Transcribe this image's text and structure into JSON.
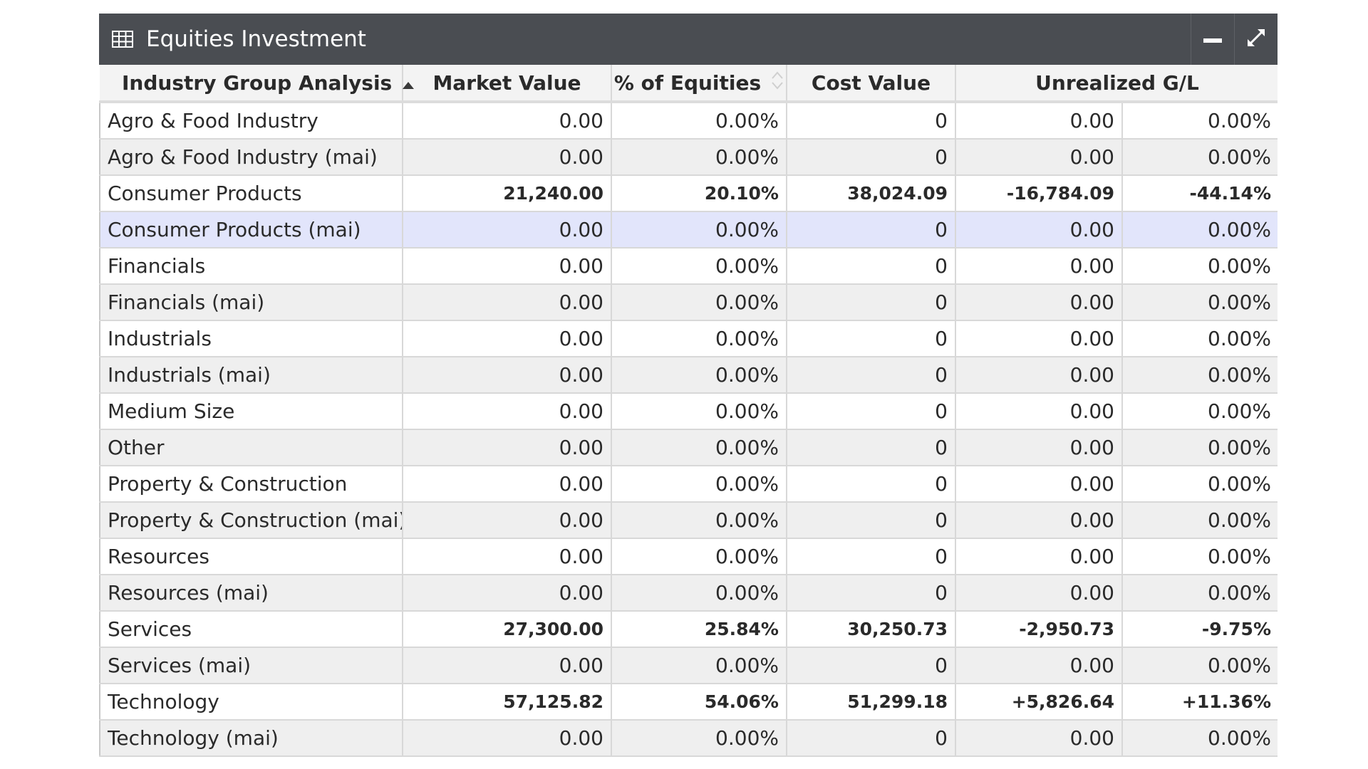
{
  "panel": {
    "title": "Equities Investment",
    "icons": {
      "title": "table-icon",
      "minimize": "minimize-icon",
      "maximize": "expand-icon"
    }
  },
  "table": {
    "columns": [
      {
        "label": "Industry Group Analysis",
        "sort": "ascending"
      },
      {
        "label": "Market Value"
      },
      {
        "label": "% of Equities",
        "sort": "sortable"
      },
      {
        "label": "Cost Value"
      },
      {
        "label": "Unrealized G/L"
      }
    ],
    "rows": [
      {
        "name": "Agro & Food Industry",
        "market_value": "0.00",
        "pct_equities": "0.00%",
        "cost_value": "0",
        "unrealized_gl": "0.00",
        "unrealized_pct": "0.00%"
      },
      {
        "name": "Agro & Food Industry (mai)",
        "market_value": "0.00",
        "pct_equities": "0.00%",
        "cost_value": "0",
        "unrealized_gl": "0.00",
        "unrealized_pct": "0.00%"
      },
      {
        "name": "Consumer Products",
        "market_value": "21,240.00",
        "pct_equities": "20.10%",
        "cost_value": "38,024.09",
        "unrealized_gl": "-16,784.09",
        "unrealized_pct": "-44.14%",
        "emphasis": true
      },
      {
        "name": "Consumer Products (mai)",
        "market_value": "0.00",
        "pct_equities": "0.00%",
        "cost_value": "0",
        "unrealized_gl": "0.00",
        "unrealized_pct": "0.00%",
        "highlighted": true
      },
      {
        "name": "Financials",
        "market_value": "0.00",
        "pct_equities": "0.00%",
        "cost_value": "0",
        "unrealized_gl": "0.00",
        "unrealized_pct": "0.00%"
      },
      {
        "name": "Financials (mai)",
        "market_value": "0.00",
        "pct_equities": "0.00%",
        "cost_value": "0",
        "unrealized_gl": "0.00",
        "unrealized_pct": "0.00%"
      },
      {
        "name": "Industrials",
        "market_value": "0.00",
        "pct_equities": "0.00%",
        "cost_value": "0",
        "unrealized_gl": "0.00",
        "unrealized_pct": "0.00%"
      },
      {
        "name": "Industrials (mai)",
        "market_value": "0.00",
        "pct_equities": "0.00%",
        "cost_value": "0",
        "unrealized_gl": "0.00",
        "unrealized_pct": "0.00%"
      },
      {
        "name": "Medium Size",
        "market_value": "0.00",
        "pct_equities": "0.00%",
        "cost_value": "0",
        "unrealized_gl": "0.00",
        "unrealized_pct": "0.00%"
      },
      {
        "name": "Other",
        "market_value": "0.00",
        "pct_equities": "0.00%",
        "cost_value": "0",
        "unrealized_gl": "0.00",
        "unrealized_pct": "0.00%"
      },
      {
        "name": "Property & Construction",
        "market_value": "0.00",
        "pct_equities": "0.00%",
        "cost_value": "0",
        "unrealized_gl": "0.00",
        "unrealized_pct": "0.00%"
      },
      {
        "name": "Property & Construction (mai)",
        "market_value": "0.00",
        "pct_equities": "0.00%",
        "cost_value": "0",
        "unrealized_gl": "0.00",
        "unrealized_pct": "0.00%"
      },
      {
        "name": "Resources",
        "market_value": "0.00",
        "pct_equities": "0.00%",
        "cost_value": "0",
        "unrealized_gl": "0.00",
        "unrealized_pct": "0.00%"
      },
      {
        "name": "Resources (mai)",
        "market_value": "0.00",
        "pct_equities": "0.00%",
        "cost_value": "0",
        "unrealized_gl": "0.00",
        "unrealized_pct": "0.00%"
      },
      {
        "name": "Services",
        "market_value": "27,300.00",
        "pct_equities": "25.84%",
        "cost_value": "30,250.73",
        "unrealized_gl": "-2,950.73",
        "unrealized_pct": "-9.75%",
        "emphasis": true
      },
      {
        "name": "Services (mai)",
        "market_value": "0.00",
        "pct_equities": "0.00%",
        "cost_value": "0",
        "unrealized_gl": "0.00",
        "unrealized_pct": "0.00%"
      },
      {
        "name": "Technology",
        "market_value": "57,125.82",
        "pct_equities": "54.06%",
        "cost_value": "51,299.18",
        "unrealized_gl": "+5,826.64",
        "unrealized_pct": "+11.36%",
        "emphasis": true
      },
      {
        "name": "Technology (mai)",
        "market_value": "0.00",
        "pct_equities": "0.00%",
        "cost_value": "0",
        "unrealized_gl": "0.00",
        "unrealized_pct": "0.00%"
      }
    ]
  },
  "colors": {
    "titlebar_bg": "#4a4d52",
    "header_bg": "#f3f3f3",
    "row_alt_bg": "#efefef",
    "row_highlight_bg": "#e2e5fb"
  }
}
